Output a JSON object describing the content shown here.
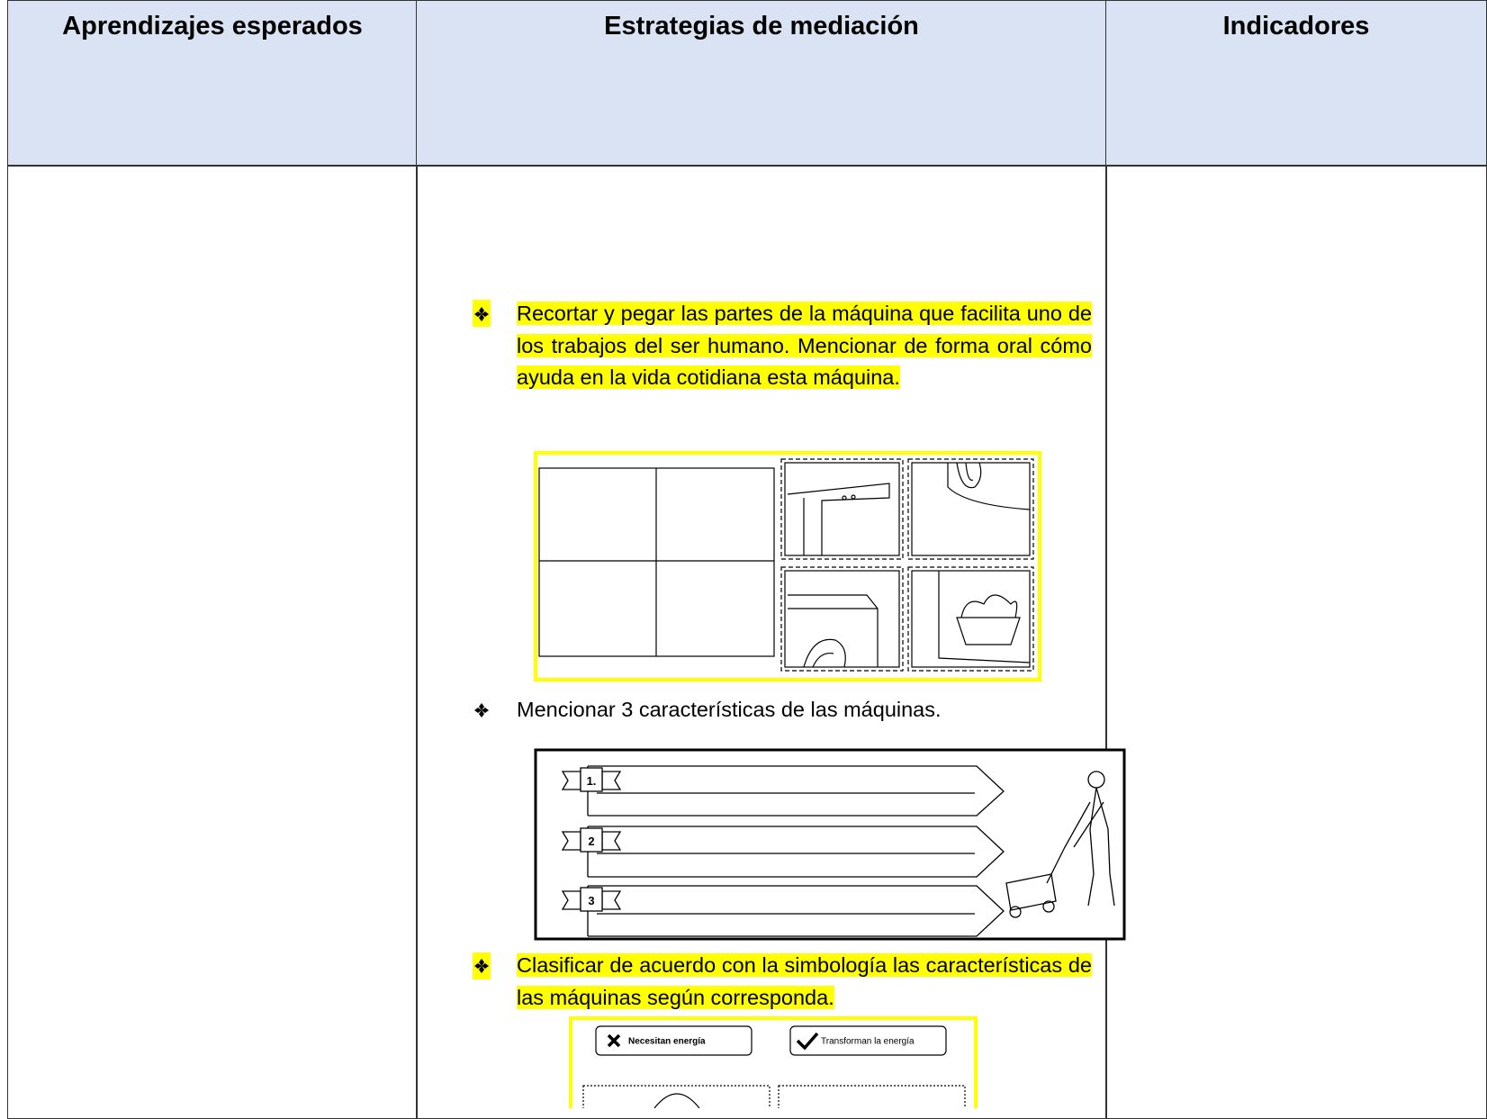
{
  "header": {
    "columns": [
      "Aprendizajes esperados",
      "Estrategias de mediación",
      "Indicadores"
    ]
  },
  "strategies": [
    "Recortar y pegar las partes de la máquina que facilita uno de los trabajos del ser humano. Mencionar de forma oral cómo ayuda en la vida cotidiana esta máquina.",
    "Mencionar 3 características de las máquinas.",
    "Clasificar de acuerdo con la simbología las características de las máquinas según corresponda."
  ],
  "worksheet_characteristics": {
    "numbers": [
      "1.",
      "2",
      "3"
    ]
  },
  "worksheet_classify": {
    "labels": [
      "Necesitan energía",
      "Transforman la energía"
    ]
  }
}
